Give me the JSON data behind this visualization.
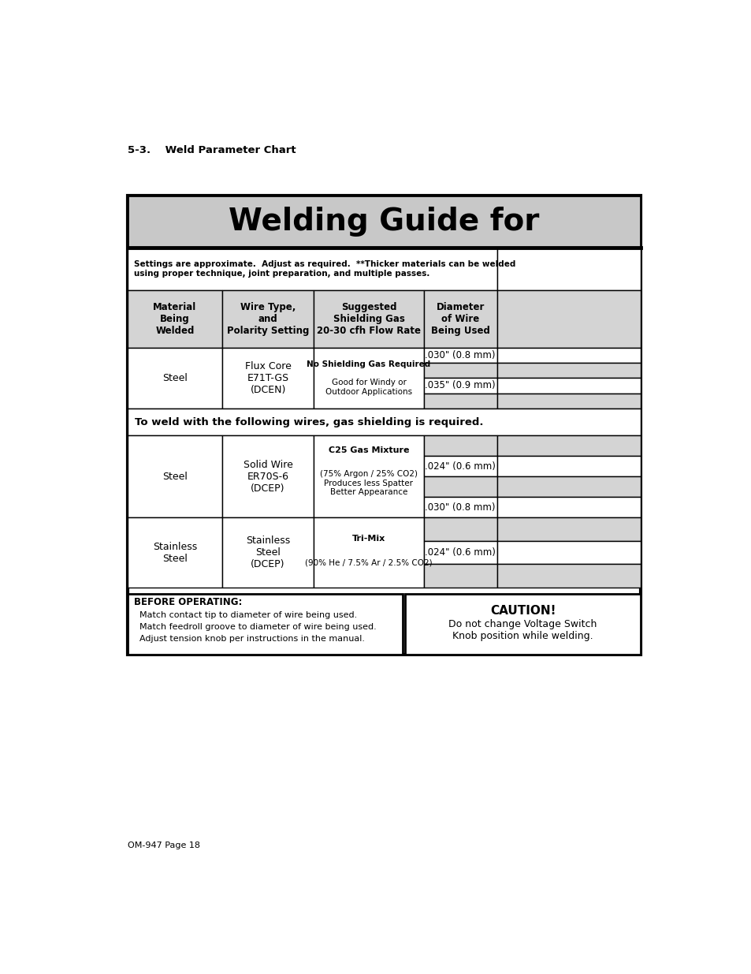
{
  "page_title": "5-3.    Weld Parameter Chart",
  "page_footer": "OM-947 Page 18",
  "main_title": "Welding Guide for",
  "settings_note": "Settings are approximate.  Adjust as required.  **Thicker materials can be welded\nusing proper technique, joint preparation, and multiple passes.",
  "gas_shielding_note": "To weld with the following wires, gas shielding is required.",
  "before_operating_title": "BEFORE OPERATING:",
  "before_operating_lines": [
    "Match contact tip to diameter of wire being used.",
    "Match feedroll groove to diameter of wire being used.",
    "Adjust tension knob per instructions in the manual."
  ],
  "caution_title": "CAUTION!",
  "caution_text": "Do not change Voltage Switch\nKnob position while welding.",
  "header_bg": "#c8c8c8",
  "light_gray": "#d4d4d4",
  "white": "#ffffff"
}
